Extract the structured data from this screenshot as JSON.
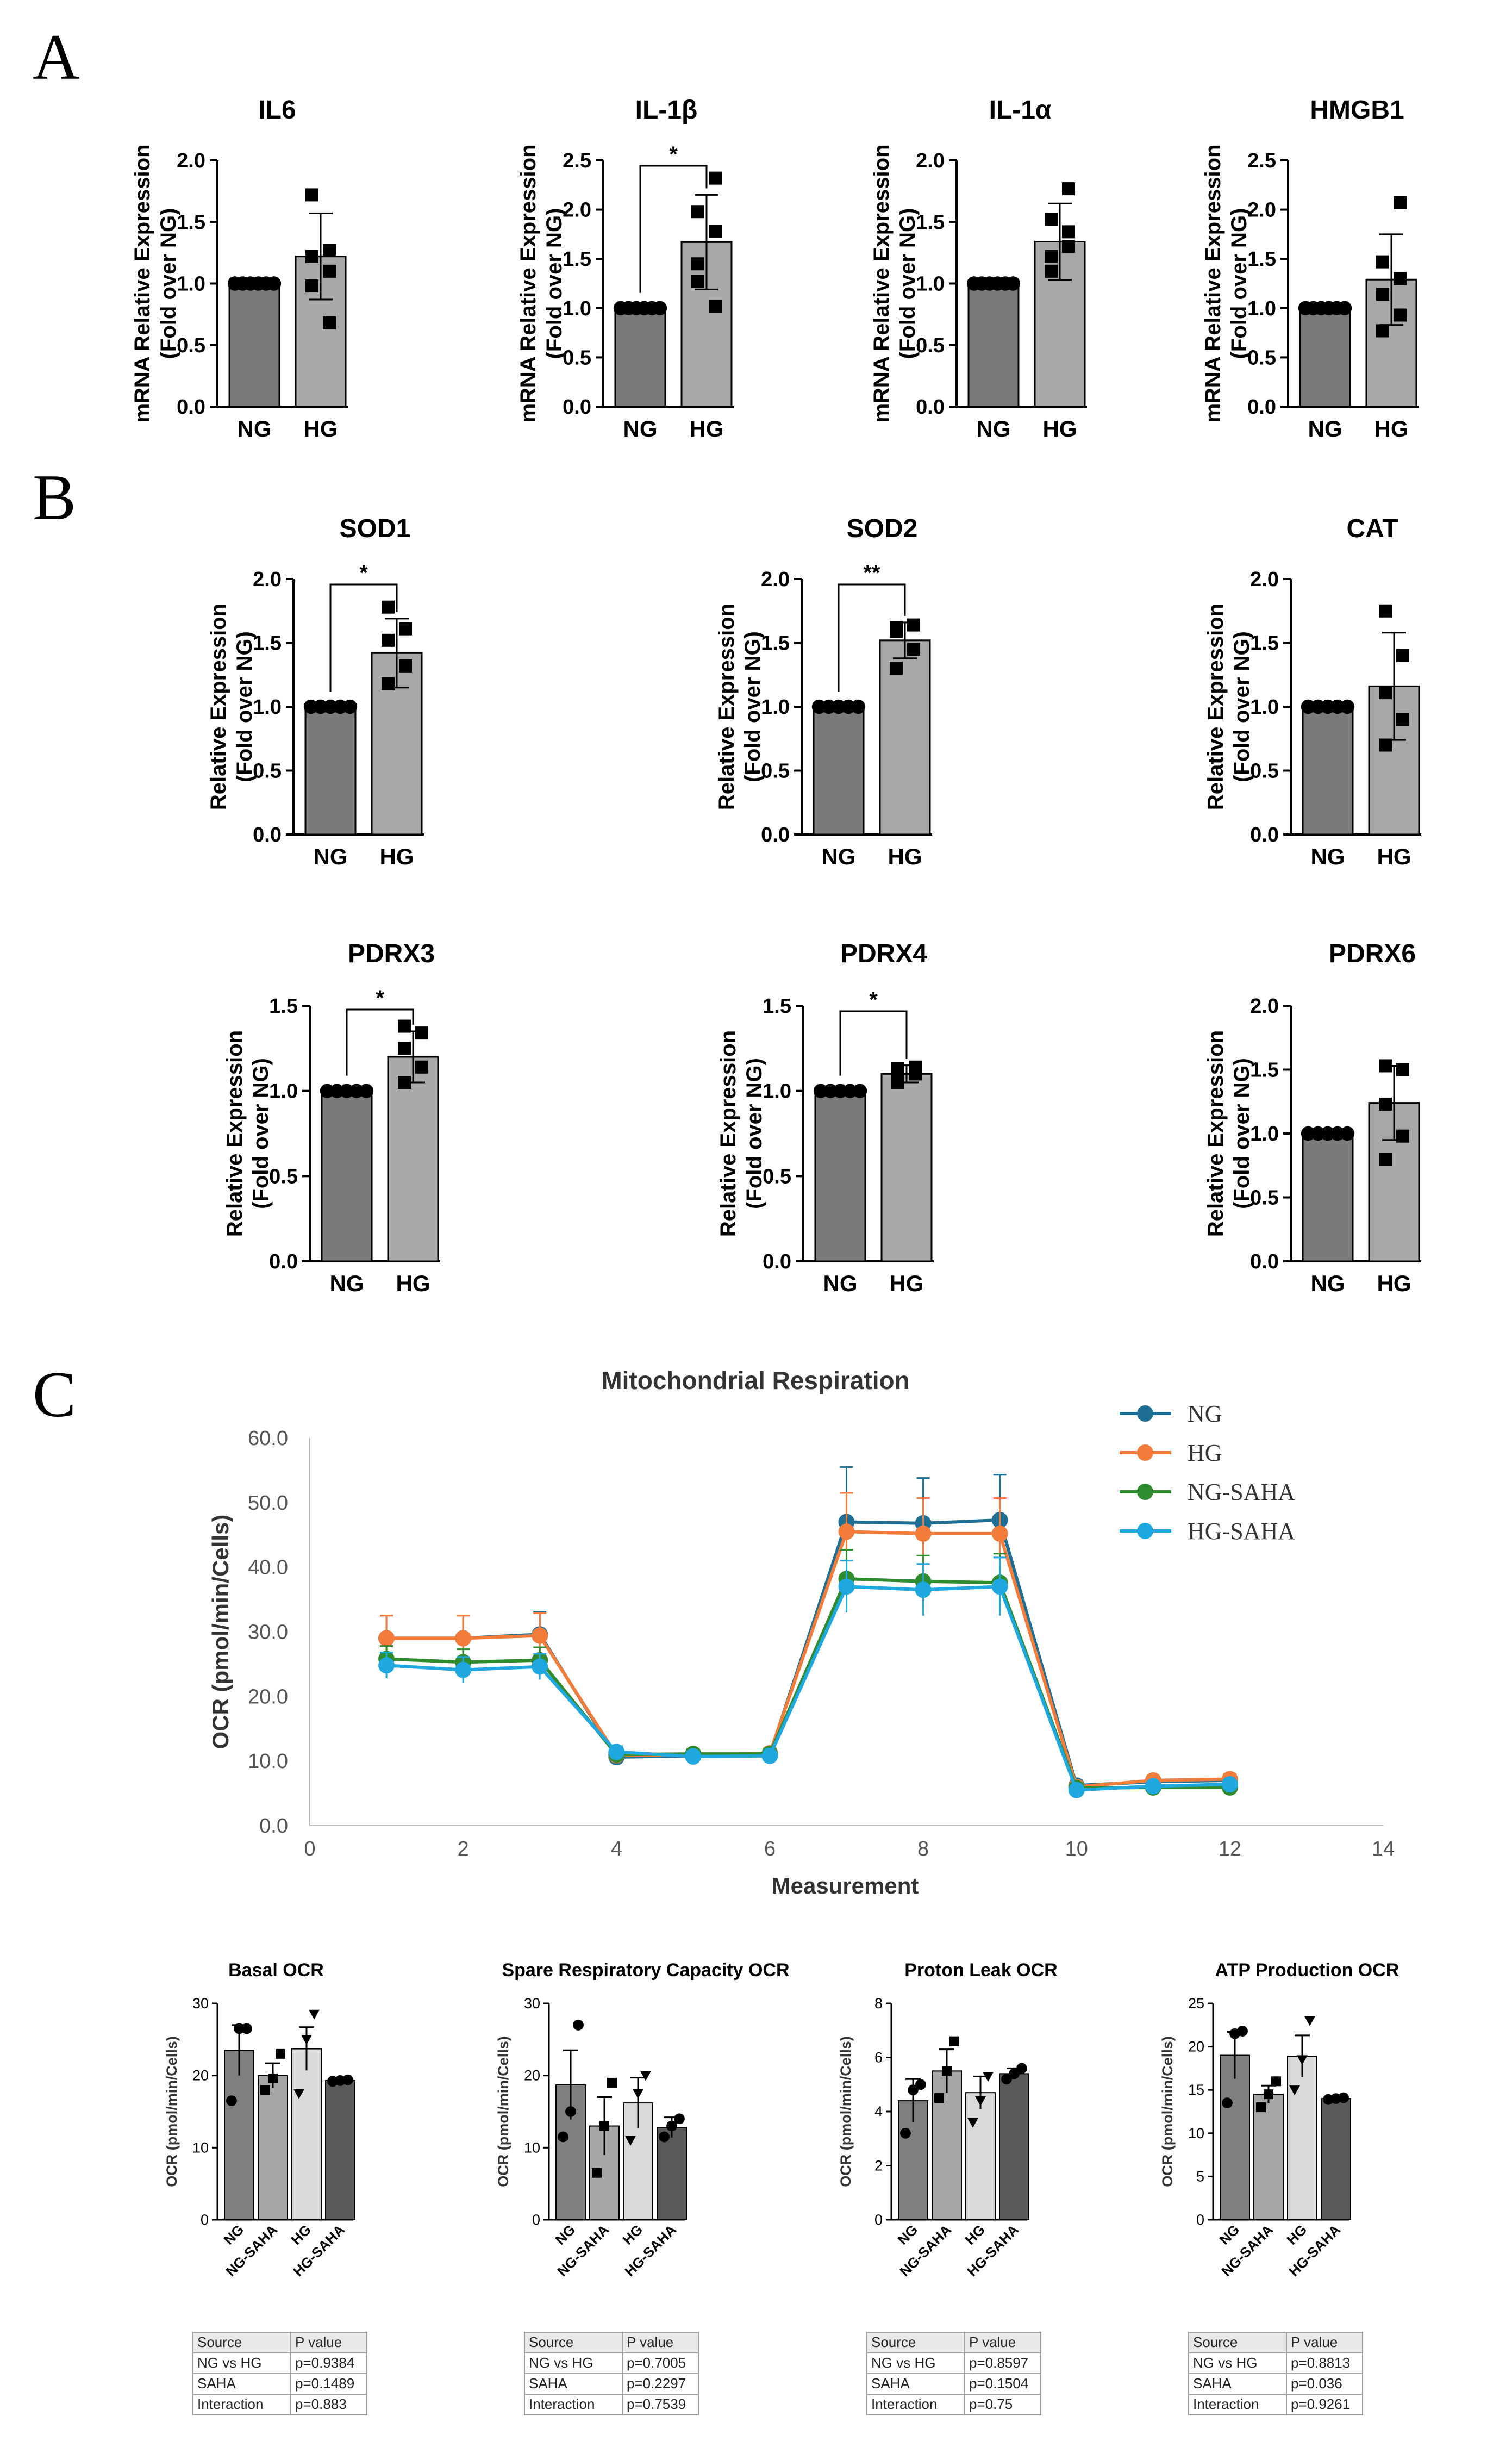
{
  "panel_labels": [
    "A",
    "B",
    "C"
  ],
  "colors": {
    "ng_bar": "#7a7a7a",
    "hg_bar": "#a8a8aa",
    "ng_line": "#1f6e93",
    "hg_line": "#f37c3b",
    "ng_saha_line": "#2f8c2e",
    "hg_saha_line": "#1ea8df",
    "bar_ng": "#7f7f7f",
    "bar_ng_saha": "#a6a6a6",
    "bar_hg": "#d9d9d9",
    "bar_hg_saha": "#595959"
  },
  "chart_data": [
    {
      "id": "IL6",
      "type": "bar",
      "title": "IL6",
      "ylabel": [
        "mRNA Relative Expression",
        "(Fold over NG)"
      ],
      "ylim": [
        0,
        2.0
      ],
      "yticks": [
        "0.0",
        "0.5",
        "1.0",
        "1.5",
        "2.0"
      ],
      "categories": [
        "NG",
        "HG"
      ],
      "values": [
        1.0,
        1.22
      ],
      "errors": [
        0,
        0.35
      ],
      "points": [
        [
          1,
          1,
          1,
          1,
          1,
          1
        ],
        [
          0.98,
          1.1,
          1.22,
          1.27,
          1.72,
          0.68
        ]
      ],
      "markers": [
        "circle",
        "square"
      ],
      "significance": ""
    },
    {
      "id": "IL1B",
      "type": "bar",
      "title": "IL-1β",
      "ylabel": [
        "mRNA Relative Expression",
        "(Fold over NG)"
      ],
      "ylim": [
        0,
        2.5
      ],
      "yticks": [
        "0.0",
        "0.5",
        "1.0",
        "1.5",
        "2.0",
        "2.5"
      ],
      "categories": [
        "NG",
        "HG"
      ],
      "values": [
        1.0,
        1.67
      ],
      "errors": [
        0,
        0.48
      ],
      "points": [
        [
          1,
          1,
          1,
          1,
          1,
          1
        ],
        [
          1.27,
          1.78,
          1.98,
          2.32,
          1.45,
          1.02
        ]
      ],
      "markers": [
        "circle",
        "square"
      ],
      "significance": "*"
    },
    {
      "id": "IL1A",
      "type": "bar",
      "title": "IL-1α",
      "ylabel": [
        "mRNA Relative Expression",
        "(Fold over NG)"
      ],
      "ylim": [
        0,
        2.0
      ],
      "yticks": [
        "0.0",
        "0.5",
        "1.0",
        "1.5",
        "2.0"
      ],
      "categories": [
        "NG",
        "HG"
      ],
      "values": [
        1.0,
        1.34
      ],
      "errors": [
        0,
        0.31
      ],
      "points": [
        [
          1,
          1,
          1,
          1,
          1,
          1
        ],
        [
          1.1,
          1.3,
          1.22,
          1.42,
          1.52,
          1.77
        ]
      ],
      "markers": [
        "circle",
        "square"
      ],
      "significance": ""
    },
    {
      "id": "HMGB1",
      "type": "bar",
      "title": "HMGB1",
      "ylabel": [
        "mRNA Relative Expression",
        "(Fold over NG)"
      ],
      "ylim": [
        0,
        2.5
      ],
      "yticks": [
        "0.0",
        "0.5",
        "1.0",
        "1.5",
        "2.0",
        "2.5"
      ],
      "categories": [
        "NG",
        "HG"
      ],
      "values": [
        1.0,
        1.29
      ],
      "errors": [
        0,
        0.46
      ],
      "points": [
        [
          1,
          1,
          1,
          1,
          1,
          1
        ],
        [
          0.77,
          0.93,
          1.14,
          1.3,
          1.47,
          2.07
        ]
      ],
      "markers": [
        "circle",
        "square"
      ],
      "significance": ""
    },
    {
      "id": "SOD1",
      "type": "bar",
      "title": "SOD1",
      "ylabel": [
        "Relative Expression",
        "(Fold over NG)"
      ],
      "ylim": [
        0,
        2.0
      ],
      "yticks": [
        "0.0",
        "0.5",
        "1.0",
        "1.5",
        "2.0"
      ],
      "categories": [
        "NG",
        "HG"
      ],
      "values": [
        1.0,
        1.42
      ],
      "errors": [
        0,
        0.27
      ],
      "points": [
        [
          1,
          1,
          1,
          1,
          1
        ],
        [
          1.18,
          1.32,
          1.52,
          1.61,
          1.78
        ]
      ],
      "markers": [
        "circle",
        "square"
      ],
      "significance": "*"
    },
    {
      "id": "SOD2",
      "type": "bar",
      "title": "SOD2",
      "ylabel": [
        "Relative Expression",
        "(Fold over NG)"
      ],
      "ylim": [
        0,
        2.0
      ],
      "yticks": [
        "0.0",
        "0.5",
        "1.0",
        "1.5",
        "2.0"
      ],
      "categories": [
        "NG",
        "HG"
      ],
      "values": [
        1.0,
        1.52
      ],
      "errors": [
        0,
        0.14
      ],
      "points": [
        [
          1,
          1,
          1,
          1,
          1
        ],
        [
          1.3,
          1.45,
          1.62,
          1.64,
          1.59
        ]
      ],
      "markers": [
        "circle",
        "square"
      ],
      "significance": "**"
    },
    {
      "id": "CAT",
      "type": "bar",
      "title": "CAT",
      "ylabel": [
        "Relative Expression",
        "(Fold over NG)"
      ],
      "ylim": [
        0,
        2.0
      ],
      "yticks": [
        "0.0",
        "0.5",
        "1.0",
        "1.5",
        "2.0"
      ],
      "categories": [
        "NG",
        "HG"
      ],
      "values": [
        1.0,
        1.16
      ],
      "errors": [
        0,
        0.42
      ],
      "points": [
        [
          1,
          1,
          1,
          1,
          1
        ],
        [
          0.7,
          0.9,
          1.11,
          1.4,
          1.75
        ]
      ],
      "markers": [
        "circle",
        "square"
      ],
      "significance": ""
    },
    {
      "id": "PDRX3",
      "type": "bar",
      "title": "PDRX3",
      "ylabel": [
        "Relative Expression",
        "(Fold over NG)"
      ],
      "ylim": [
        0,
        1.5
      ],
      "yticks": [
        "0.0",
        "0.5",
        "1.0",
        "1.5"
      ],
      "categories": [
        "NG",
        "HG"
      ],
      "values": [
        1.0,
        1.2
      ],
      "errors": [
        0,
        0.15
      ],
      "points": [
        [
          1,
          1,
          1,
          1,
          1
        ],
        [
          1.05,
          1.14,
          1.25,
          1.34,
          1.38
        ]
      ],
      "markers": [
        "circle",
        "square"
      ],
      "significance": "*"
    },
    {
      "id": "PDRX4",
      "type": "bar",
      "title": "PDRX4",
      "ylabel": [
        "Relative Expression",
        "(Fold over NG)"
      ],
      "ylim": [
        0,
        1.5
      ],
      "yticks": [
        "0.0",
        "0.5",
        "1.0",
        "1.5"
      ],
      "categories": [
        "NG",
        "HG"
      ],
      "values": [
        1.0,
        1.1
      ],
      "errors": [
        0,
        0.05
      ],
      "points": [
        [
          1,
          1,
          1,
          1,
          1
        ],
        [
          1.05,
          1.1,
          1.13,
          1.14,
          1.12
        ]
      ],
      "markers": [
        "circle",
        "square"
      ],
      "significance": "*"
    },
    {
      "id": "PDRX6",
      "type": "bar",
      "title": "PDRX6",
      "ylabel": [
        "Relative Expression",
        "(Fold over NG)"
      ],
      "ylim": [
        0,
        2.0
      ],
      "yticks": [
        "0.0",
        "0.5",
        "1.0",
        "1.5",
        "2.0"
      ],
      "categories": [
        "NG",
        "HG"
      ],
      "values": [
        1.0,
        1.24
      ],
      "errors": [
        0,
        0.29
      ],
      "points": [
        [
          1,
          1,
          1,
          1,
          1
        ],
        [
          0.8,
          0.98,
          1.23,
          1.5,
          1.53
        ]
      ],
      "markers": [
        "circle",
        "square"
      ],
      "significance": ""
    },
    {
      "id": "RESP",
      "type": "line",
      "title": "Mitochondrial Respiration",
      "xlabel": "Measurement",
      "ylabel": "OCR (pmol/min/Cells)",
      "xlim": [
        0,
        14
      ],
      "xticks": [
        "0",
        "2",
        "4",
        "6",
        "8",
        "10",
        "12",
        "14"
      ],
      "ylim": [
        0,
        60
      ],
      "yticks": [
        "0.0",
        "10.0",
        "20.0",
        "30.0",
        "40.0",
        "50.0",
        "60.0"
      ],
      "x": [
        1,
        2,
        3,
        4,
        5,
        6,
        7,
        8,
        9,
        10,
        11,
        12
      ],
      "series": [
        {
          "name": "NG",
          "color": "#1f6e93",
          "values": [
            29.0,
            29.0,
            29.6,
            10.6,
            10.8,
            11.0,
            47.0,
            46.8,
            47.3,
            6.2,
            6.8,
            7.0
          ],
          "errors": [
            3.5,
            3.5,
            3.5,
            1.0,
            0.8,
            0.8,
            8.5,
            7.0,
            7.0,
            0.8,
            0.7,
            0.8
          ]
        },
        {
          "name": "HG",
          "color": "#f37c3b",
          "values": [
            29.0,
            29.0,
            29.4,
            10.9,
            10.9,
            11.2,
            45.5,
            45.2,
            45.2,
            6.0,
            7.0,
            7.2
          ],
          "errors": [
            3.5,
            3.5,
            3.5,
            1.0,
            0.8,
            0.8,
            6.0,
            5.5,
            5.5,
            0.8,
            0.7,
            0.8
          ]
        },
        {
          "name": "NG-SAHA",
          "color": "#2f8c2e",
          "values": [
            25.8,
            25.3,
            25.6,
            11.0,
            11.1,
            11.1,
            38.2,
            37.8,
            37.6,
            5.8,
            5.9,
            5.9
          ],
          "errors": [
            2.0,
            2.0,
            2.0,
            0.9,
            0.8,
            0.8,
            4.5,
            4.0,
            4.5,
            0.7,
            0.6,
            0.7
          ]
        },
        {
          "name": "HG-SAHA",
          "color": "#1ea8df",
          "values": [
            24.8,
            24.1,
            24.6,
            11.4,
            10.7,
            10.8,
            37.0,
            36.5,
            37.0,
            5.5,
            6.1,
            6.4
          ],
          "errors": [
            2.0,
            2.0,
            2.0,
            0.9,
            0.8,
            0.8,
            4.0,
            4.0,
            4.5,
            0.7,
            0.6,
            0.7
          ]
        }
      ]
    },
    {
      "id": "BASAL",
      "type": "bar",
      "title": "Basal OCR",
      "ylabel": "OCR (pmol/min/Cells)",
      "ylim": [
        0,
        30
      ],
      "yticks": [
        "0",
        "10",
        "20",
        "30"
      ],
      "categories": [
        "NG",
        "NG-SAHA",
        "HG",
        "HG-SAHA"
      ],
      "values": [
        23.5,
        20.0,
        23.7,
        19.3
      ],
      "errors": [
        3.5,
        1.7,
        3.0,
        0.2
      ],
      "points": [
        [
          16.5,
          26.5,
          26.5
        ],
        [
          18.0,
          19.6,
          23.0
        ],
        [
          17.5,
          25.0,
          28.5
        ],
        [
          19.2,
          19.3,
          19.4
        ]
      ],
      "markers": [
        "circle",
        "square",
        "triangle",
        "circle"
      ]
    },
    {
      "id": "SPARE",
      "type": "bar",
      "title": "Spare Respiratory Capacity OCR",
      "ylabel": "OCR (pmol/min/Cells)",
      "ylim": [
        0,
        30
      ],
      "yticks": [
        "0",
        "10",
        "20",
        "30"
      ],
      "categories": [
        "NG",
        "NG-SAHA",
        "HG",
        "HG-SAHA"
      ],
      "values": [
        18.7,
        13.0,
        16.2,
        12.8
      ],
      "errors": [
        4.8,
        4.0,
        3.5,
        1.4
      ],
      "points": [
        [
          11.5,
          15.0,
          27.0
        ],
        [
          6.5,
          13.0,
          19.0
        ],
        [
          11.0,
          17.5,
          20.0
        ],
        [
          11.5,
          13.0,
          14.0
        ]
      ],
      "markers": [
        "circle",
        "square",
        "triangle",
        "circle"
      ]
    },
    {
      "id": "PROTON",
      "type": "bar",
      "title": "Proton Leak OCR",
      "ylabel": "OCR (pmol/min/Cells)",
      "ylim": [
        0,
        8
      ],
      "yticks": [
        "0",
        "2",
        "4",
        "6",
        "8"
      ],
      "categories": [
        "NG",
        "NG-SAHA",
        "HG",
        "HG-SAHA"
      ],
      "values": [
        4.4,
        5.5,
        4.7,
        5.4
      ],
      "errors": [
        0.8,
        0.8,
        0.6,
        0.2
      ],
      "points": [
        [
          3.2,
          4.8,
          5.0
        ],
        [
          4.5,
          5.5,
          6.6
        ],
        [
          3.6,
          4.4,
          5.3
        ],
        [
          5.2,
          5.4,
          5.6
        ]
      ],
      "markers": [
        "circle",
        "square",
        "triangle",
        "circle"
      ]
    },
    {
      "id": "ATP",
      "type": "bar",
      "title": "ATP Production OCR",
      "ylabel": "OCR (pmol/min/Cells)",
      "ylim": [
        0,
        25
      ],
      "yticks": [
        "0",
        "5",
        "10",
        "15",
        "20",
        "25"
      ],
      "categories": [
        "NG",
        "NG-SAHA",
        "HG",
        "HG-SAHA"
      ],
      "values": [
        19.0,
        14.5,
        18.9,
        14.0
      ],
      "errors": [
        2.7,
        1.0,
        2.4,
        0.1
      ],
      "points": [
        [
          13.5,
          21.5,
          21.8
        ],
        [
          13.0,
          14.5,
          16.0
        ],
        [
          15.0,
          18.5,
          23.0
        ],
        [
          13.9,
          14.0,
          14.1
        ]
      ],
      "markers": [
        "circle",
        "square",
        "triangle",
        "circle"
      ]
    }
  ],
  "stat_tables": [
    {
      "header": [
        "Source",
        "P value"
      ],
      "rows": [
        [
          "NG vs HG",
          "p=0.9384"
        ],
        [
          "SAHA",
          "p=0.1489"
        ],
        [
          "Interaction",
          "p=0.883"
        ]
      ]
    },
    {
      "header": [
        "Source",
        "P value"
      ],
      "rows": [
        [
          "NG vs HG",
          "p=0.7005"
        ],
        [
          "SAHA",
          "p=0.2297"
        ],
        [
          "Interaction",
          "p=0.7539"
        ]
      ]
    },
    {
      "header": [
        "Source",
        "P value"
      ],
      "rows": [
        [
          "NG vs HG",
          "p=0.8597"
        ],
        [
          "SAHA",
          "p=0.1504"
        ],
        [
          "Interaction",
          "p=0.75"
        ]
      ]
    },
    {
      "header": [
        "Source",
        "P value"
      ],
      "rows": [
        [
          "NG vs HG",
          "p=0.8813"
        ],
        [
          "SAHA",
          "p=0.036"
        ],
        [
          "Interaction",
          "p=0.9261"
        ]
      ]
    }
  ]
}
